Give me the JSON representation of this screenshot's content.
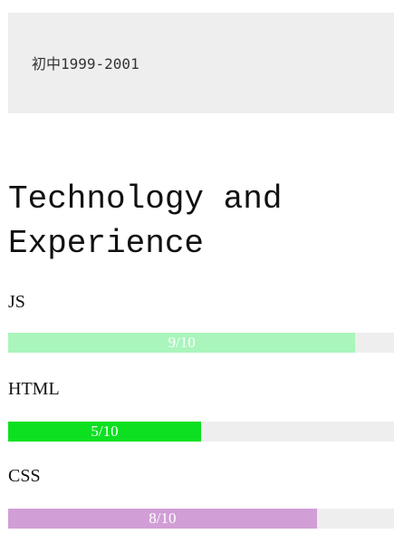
{
  "education": {
    "text": "初中1999-2001"
  },
  "section": {
    "title": "Technology and Experience"
  },
  "skills": [
    {
      "name": "JS",
      "level": 9,
      "max": 10,
      "label": "9/10",
      "color": "#a9f5bc"
    },
    {
      "name": "HTML",
      "level": 5,
      "max": 10,
      "label": "5/10",
      "color": "#0ce021"
    },
    {
      "name": "CSS",
      "level": 8,
      "max": 10,
      "label": "8/10",
      "color": "#d19ed6"
    }
  ]
}
